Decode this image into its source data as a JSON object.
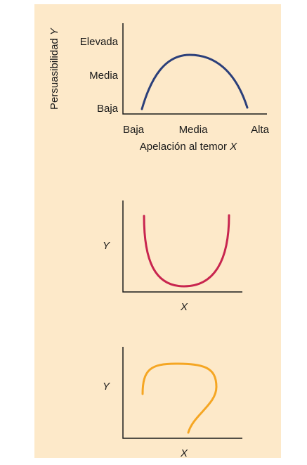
{
  "panels": [
    {
      "y_label": {
        "text": "Persuasibilidad",
        "variable": "Y"
      },
      "y_levels": [
        "Elevada",
        "Media",
        "Baja"
      ],
      "x_levels": [
        "Baja",
        "Media",
        "Alta"
      ],
      "x_label": {
        "text": "Apelación al temor",
        "variable": "X"
      }
    },
    {
      "y_label": "Y",
      "x_label": "X"
    },
    {
      "y_label": "Y",
      "x_label": "X"
    }
  ]
}
